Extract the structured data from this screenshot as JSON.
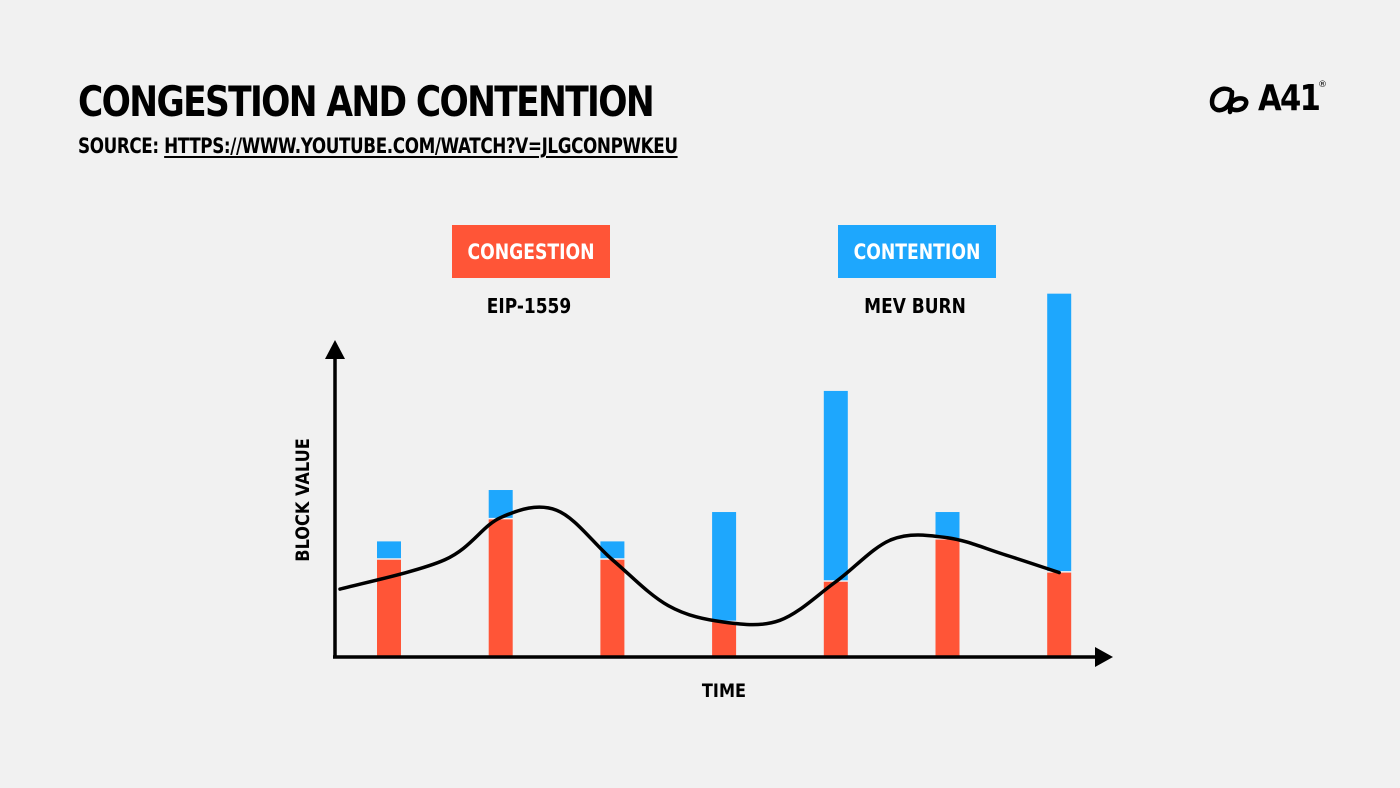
{
  "header": {
    "title": "CONGESTION AND CONTENTION",
    "source_label": "SOURCE:",
    "source_url": "HTTPS://WWW.YOUTUBE.COM/WATCH?V=JLGCONPWKEU"
  },
  "logo": {
    "text": "A41",
    "registered": "®",
    "icon": "a41-logo-icon"
  },
  "colors": {
    "background": "#f1f1f1",
    "congestion": "#ff5537",
    "contention": "#1ea7fd",
    "axis": "#000000"
  },
  "chart_data": {
    "type": "bar",
    "stacked": true,
    "xlabel": "TIME",
    "ylabel": "BLOCK VALUE",
    "ylim": [
      0,
      100
    ],
    "categories": [
      "",
      "",
      "",
      "",
      "",
      "",
      ""
    ],
    "series": [
      {
        "name": "CONGESTION",
        "values": [
          26.5,
          37.5,
          26.5,
          9.5,
          20.5,
          32,
          23
        ]
      },
      {
        "name": "CONTENTION",
        "values": [
          5,
          8,
          5,
          30,
          52,
          7.5,
          76
        ]
      }
    ],
    "legend": [
      {
        "label": "CONGESTION",
        "sublabel": "EIP-1559"
      },
      {
        "label": "CONTENTION",
        "sublabel": "MEV BURN"
      }
    ],
    "curve": {
      "x": [
        0,
        0.5,
        1,
        1.5,
        2,
        2.5,
        3,
        3.5,
        4,
        4.5,
        5,
        5.5,
        6
      ],
      "y": [
        18.5,
        26.5,
        38,
        40,
        26.5,
        14,
        9.5,
        10,
        20.5,
        32,
        32.5,
        28,
        23
      ]
    },
    "grid": false,
    "legend_position": "top"
  }
}
